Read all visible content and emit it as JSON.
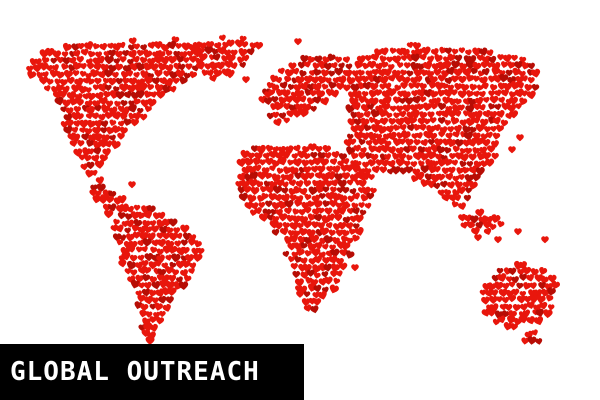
{
  "banner": {
    "title": "GLOBAL OUTREACH"
  },
  "map": {
    "symbol": "heart-icon",
    "regions": [
      "north-america",
      "greenland",
      "south-america",
      "europe",
      "africa",
      "asia",
      "indonesia",
      "australia",
      "new-zealand"
    ]
  },
  "colors": {
    "background": "#ffffff",
    "heart": "#e8160c",
    "heart_shade": "#b70d05",
    "banner_bg": "#000000",
    "banner_text": "#ffffff"
  }
}
